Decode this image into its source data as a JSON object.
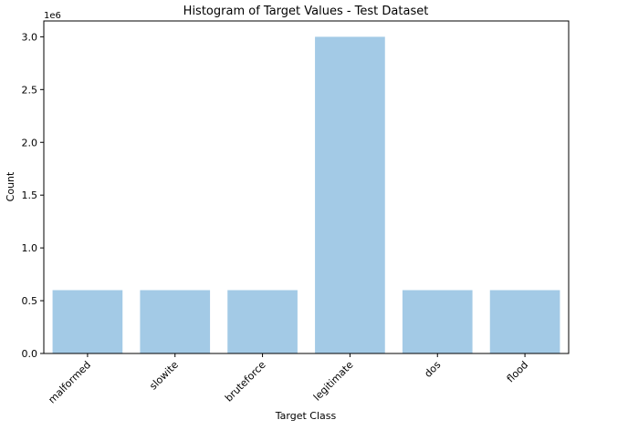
{
  "chart_data": {
    "type": "bar",
    "title": "Histogram of Target Values - Test Dataset",
    "xlabel": "Target Class",
    "ylabel": "Count",
    "y_offset_label": "1e6",
    "categories": [
      "malformed",
      "slowite",
      "bruteforce",
      "legitimate",
      "dos",
      "flood"
    ],
    "values": [
      600000,
      600000,
      600000,
      3000000,
      600000,
      600000
    ],
    "ylim": [
      0,
      3150000
    ],
    "yticks": [
      0,
      500000,
      1000000,
      1500000,
      2000000,
      2500000,
      3000000
    ],
    "ytick_labels": [
      "0.0",
      "0.5",
      "1.0",
      "1.5",
      "2.0",
      "2.5",
      "3.0"
    ],
    "grid": false,
    "bar_color": "#a3cae6"
  }
}
